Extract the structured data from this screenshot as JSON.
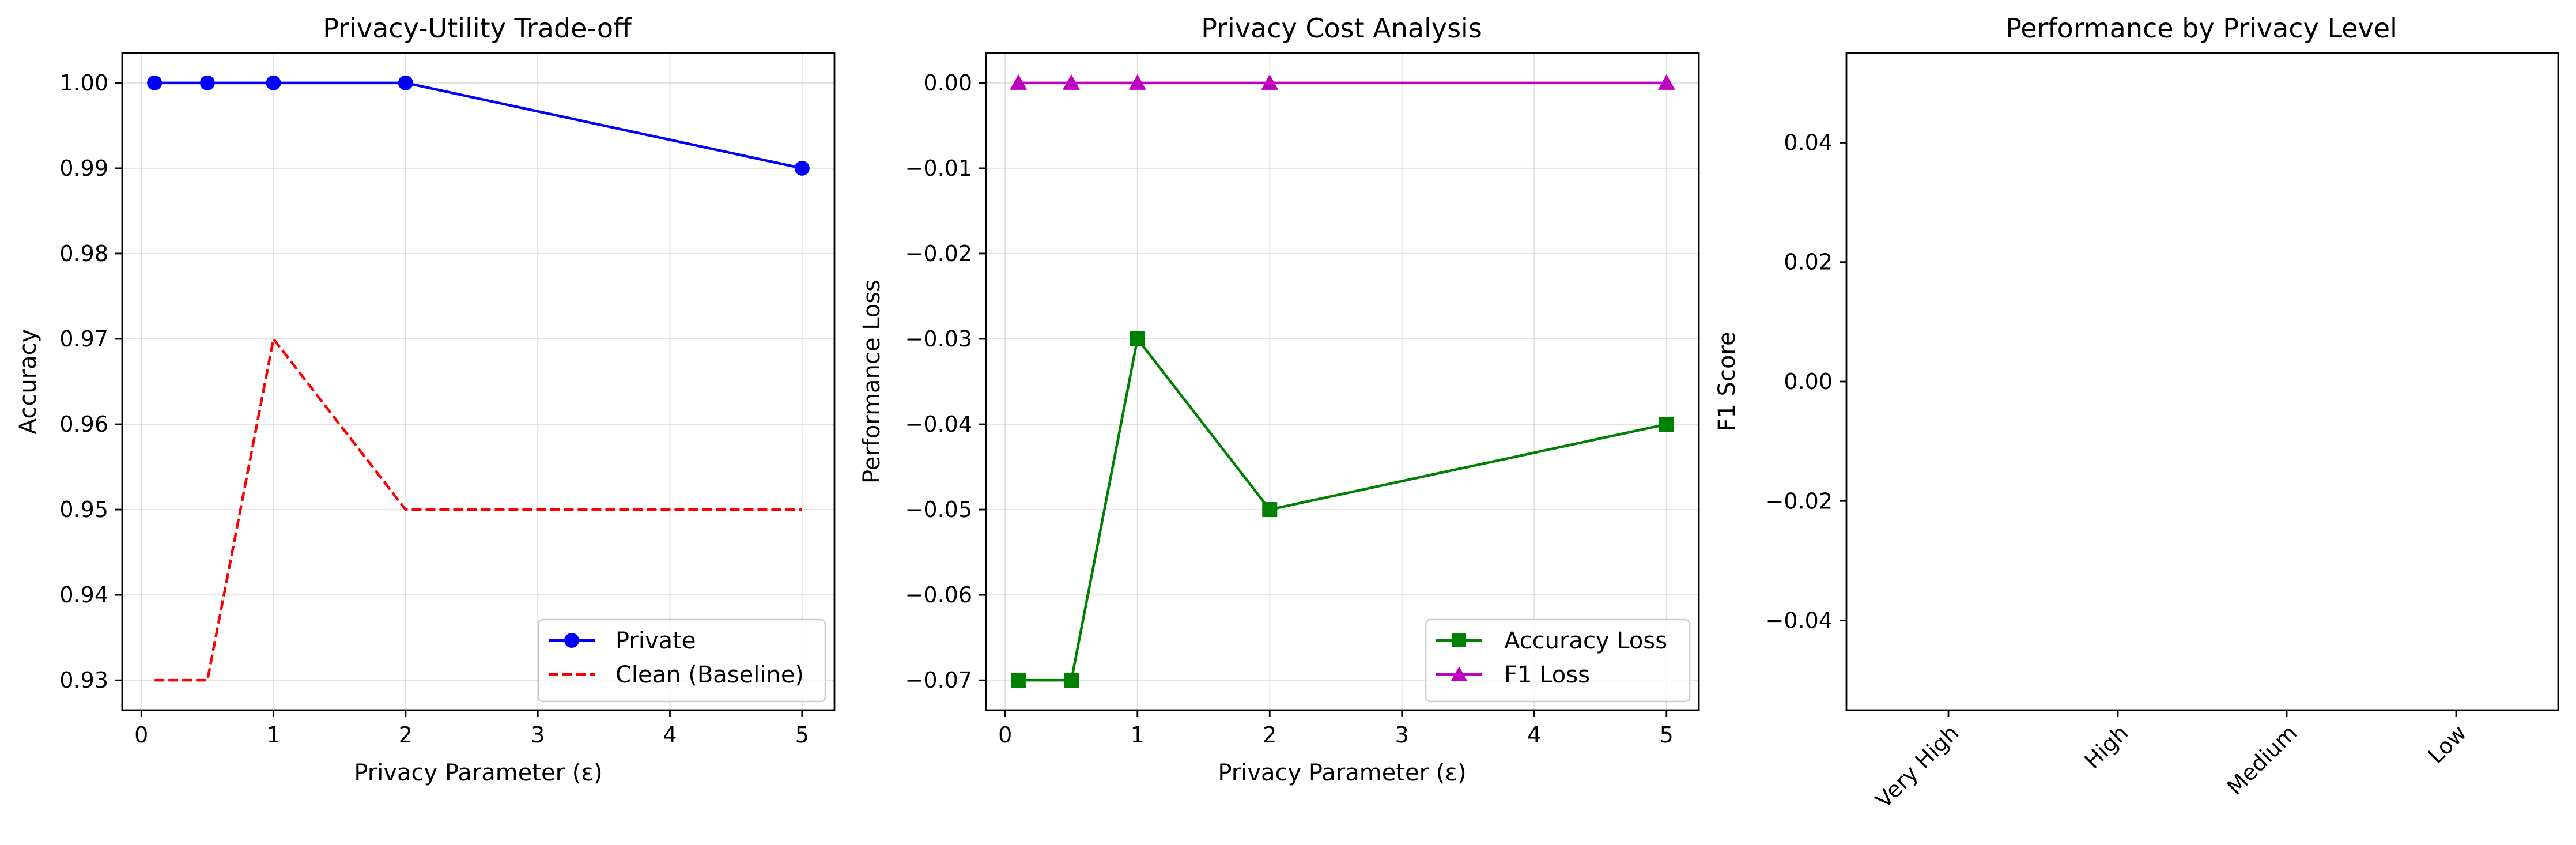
{
  "figure": {
    "panels": [
      {
        "id": "tradeoff",
        "title": "Privacy-Utility Trade-off",
        "xlabel": "Privacy Parameter (ε)",
        "ylabel": "Accuracy",
        "xticks": [
          "0",
          "1",
          "2",
          "3",
          "4",
          "5"
        ],
        "yticks": [
          "0.93",
          "0.94",
          "0.95",
          "0.96",
          "0.97",
          "0.98",
          "0.99",
          "1.00"
        ],
        "legend": [
          "Private",
          "Clean (Baseline)"
        ]
      },
      {
        "id": "cost",
        "title": "Privacy Cost Analysis",
        "xlabel": "Privacy Parameter (ε)",
        "ylabel": "Performance Loss",
        "xticks": [
          "0",
          "1",
          "2",
          "3",
          "4",
          "5"
        ],
        "yticks": [
          "−0.07",
          "−0.06",
          "−0.05",
          "−0.04",
          "−0.03",
          "−0.02",
          "−0.01",
          "0.00"
        ],
        "legend": [
          "Accuracy Loss",
          "F1 Loss"
        ]
      },
      {
        "id": "level",
        "title": "Performance by Privacy Level",
        "xlabel": "",
        "ylabel": "F1 Score",
        "xticks": [
          "Very High",
          "High",
          "Medium",
          "Low"
        ],
        "yticks": [
          "−0.04",
          "−0.02",
          "0.00",
          "0.02",
          "0.04"
        ],
        "legend": []
      }
    ]
  },
  "chart_data": [
    {
      "type": "line",
      "title": "Privacy-Utility Trade-off",
      "xlabel": "Privacy Parameter (ε)",
      "ylabel": "Accuracy",
      "xlim": [
        -0.145,
        5.245
      ],
      "ylim": [
        0.9265,
        1.0035
      ],
      "grid": true,
      "legend_position": "lower-right",
      "series": [
        {
          "name": "Private",
          "color": "#0000ff",
          "marker": "circle",
          "dash": "solid",
          "x": [
            0.1,
            0.5,
            1,
            2,
            5
          ],
          "y": [
            1.0,
            1.0,
            1.0,
            1.0,
            0.99
          ]
        },
        {
          "name": "Clean (Baseline)",
          "color": "#ff0000",
          "marker": "none",
          "dash": "dashed",
          "x": [
            0.1,
            0.5,
            1,
            2,
            5
          ],
          "y": [
            0.93,
            0.93,
            0.97,
            0.95,
            0.95
          ]
        }
      ]
    },
    {
      "type": "line",
      "title": "Privacy Cost Analysis",
      "xlabel": "Privacy Parameter (ε)",
      "ylabel": "Performance Loss",
      "xlim": [
        -0.145,
        5.245
      ],
      "ylim": [
        -0.0735,
        0.0035
      ],
      "grid": true,
      "legend_position": "lower-right",
      "series": [
        {
          "name": "Accuracy Loss",
          "color": "#008000",
          "marker": "square",
          "dash": "solid",
          "x": [
            0.1,
            0.5,
            1,
            2,
            5
          ],
          "y": [
            -0.07,
            -0.07,
            -0.03,
            -0.05,
            -0.04
          ]
        },
        {
          "name": "F1 Loss",
          "color": "#bf00bf",
          "marker": "triangle",
          "dash": "solid",
          "x": [
            0.1,
            0.5,
            1,
            2,
            5
          ],
          "y": [
            0.0,
            0.0,
            0.0,
            0.0,
            0.0
          ]
        }
      ]
    },
    {
      "type": "bar",
      "title": "Performance by Privacy Level",
      "ylabel": "F1 Score",
      "categories": [
        "Very High",
        "High",
        "Medium",
        "Low"
      ],
      "values": [
        0,
        0,
        0,
        0
      ],
      "ylim": [
        -0.055,
        0.055
      ],
      "grid": false
    }
  ]
}
